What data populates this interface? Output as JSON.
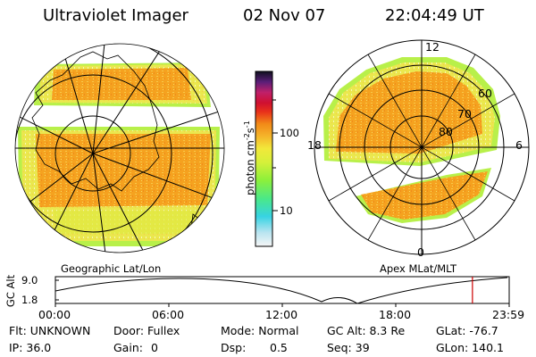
{
  "header": {
    "instrument": "Ultraviolet Imager",
    "date": "02 Nov 07",
    "time": "22:04:49 UT"
  },
  "geo_map": {
    "label": "Geographic Lat/Lon"
  },
  "apex_map": {
    "label": "Apex  MLat/MLT",
    "mlt_labels": [
      "12",
      "18",
      "6",
      "0"
    ],
    "mlat_labels": [
      "60",
      "70",
      "80"
    ]
  },
  "colorbar": {
    "unit_label": "photon cm",
    "unit_exp1": "-2",
    "unit_mid": "s",
    "unit_exp2": "-1",
    "ticks": [
      "100",
      "10"
    ]
  },
  "altitude_plot": {
    "ylabel": "GC Alt",
    "ymax": "9.0",
    "ymin": "1.8",
    "xticks": [
      "00:00",
      "06:00",
      "12:00",
      "18:00",
      "23:59"
    ],
    "current_time_fraction": 0.919,
    "marker_color": "#cc0000"
  },
  "status": {
    "filter": "Flt: UNKNOWN",
    "door": "Door: Fullex",
    "mode": "Mode: Normal",
    "gc_alt": "GC Alt: 8.3 Re",
    "glat": "GLat: -76.7",
    "ip": "IP: 36.0",
    "gain_label": "Gain:",
    "gain_value": "0",
    "dsp_label": "Dsp:",
    "dsp_value": "0.5",
    "seq": "Seq: 39",
    "glon": "GLon: 140.1"
  },
  "colors": {
    "band_high": "#f5a21f",
    "band_mid": "#e8e84a",
    "band_low": "#b8f04a",
    "edge": "#6fe07a"
  }
}
